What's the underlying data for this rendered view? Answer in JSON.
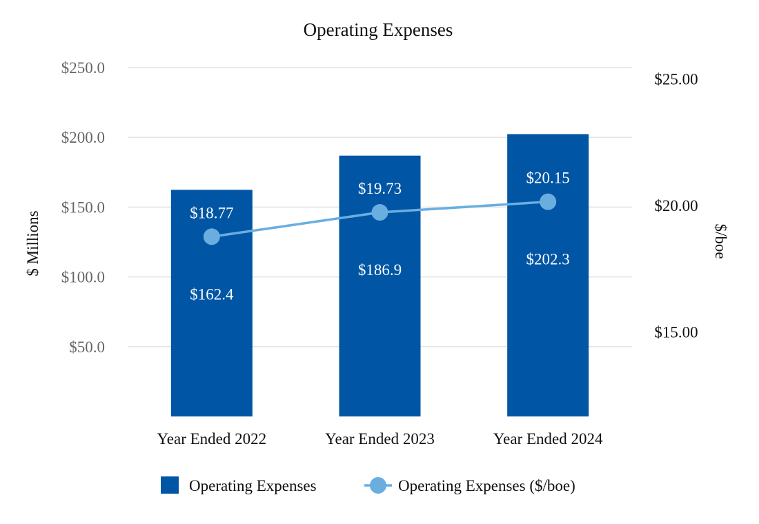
{
  "chart_data": {
    "type": "bar",
    "title": "Operating Expenses",
    "categories": [
      "Year Ended 2022",
      "Year Ended 2023",
      "Year Ended 2024"
    ],
    "series": [
      {
        "name": "Operating Expenses",
        "type": "bar",
        "axis": "left",
        "color": "#0055A4",
        "values": [
          162.4,
          186.9,
          202.3
        ],
        "labels": [
          "$162.4",
          "$186.9",
          "$202.3"
        ]
      },
      {
        "name": "Operating Expenses ($/boe)",
        "type": "line",
        "axis": "right",
        "color": "#6AAEE0",
        "values": [
          18.77,
          19.73,
          20.15
        ],
        "labels": [
          "$18.77",
          "$19.73",
          "$20.15"
        ]
      }
    ],
    "ylabel": "$ Millions",
    "ylim": [
      0,
      250
    ],
    "y_ticks": [
      50,
      100,
      150,
      200,
      250
    ],
    "y_tick_labels": [
      "$50.0",
      "$100.0",
      "$150.0",
      "$200.0",
      "$250.0"
    ],
    "y2label": "$/boe",
    "y2lim": [
      11.67,
      25.45
    ],
    "y2_ticks": [
      15,
      20,
      25
    ],
    "y2_tick_labels": [
      "$15.00",
      "$20.00",
      "$25.00"
    ],
    "grid": true,
    "legend": "bottom"
  }
}
